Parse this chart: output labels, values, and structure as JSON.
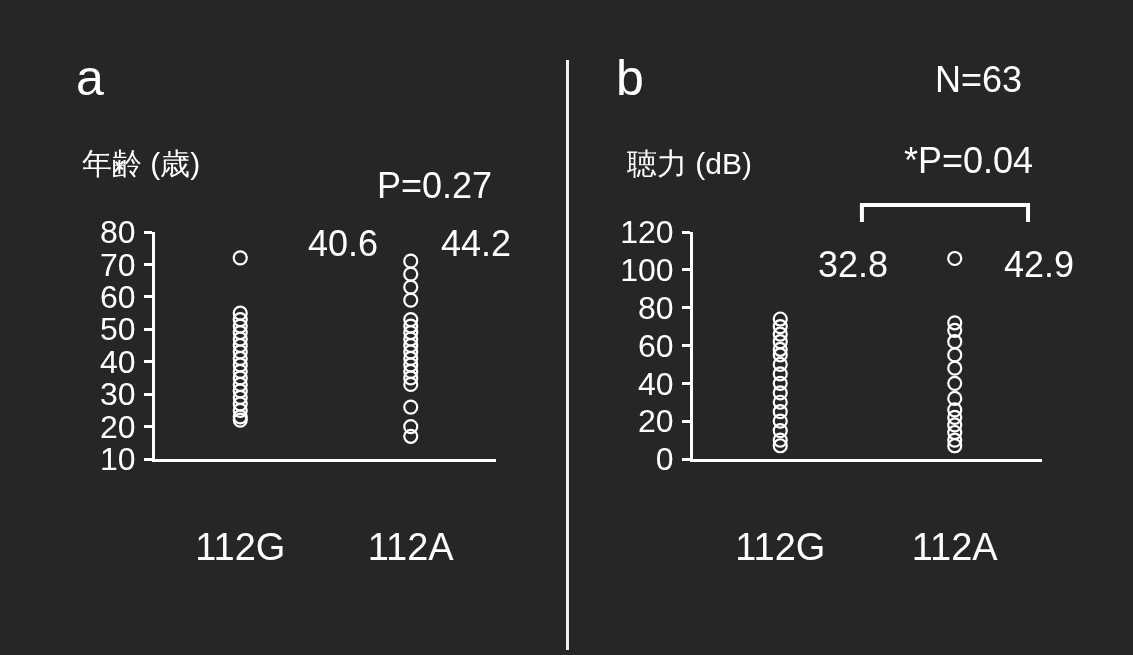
{
  "chart_data": [
    {
      "type": "scatter",
      "title": "a",
      "ylabel": "年齢 (歳)",
      "categories": [
        "112G",
        "112A"
      ],
      "ylim": [
        10,
        80
      ],
      "yticks": [
        10,
        20,
        30,
        40,
        50,
        60,
        70,
        80
      ],
      "marker": "circle",
      "series": [
        {
          "color": "#ffffff",
          "x": [
            "112G",
            "112G",
            "112G",
            "112G",
            "112G",
            "112G",
            "112G",
            "112G",
            "112G",
            "112G",
            "112G",
            "112G",
            "112G",
            "112G",
            "112G",
            "112G",
            "112G",
            "112G",
            "112G"
          ],
          "values": [
            72,
            55,
            53,
            51,
            49,
            47,
            45,
            43,
            41,
            39,
            37,
            35,
            33,
            31,
            29,
            27,
            25,
            23,
            22
          ]
        },
        {
          "color": "#ffffff",
          "x": [
            "112A",
            "112A",
            "112A",
            "112A",
            "112A",
            "112A",
            "112A",
            "112A",
            "112A",
            "112A",
            "112A",
            "112A",
            "112A",
            "112A",
            "112A",
            "112A",
            "112A",
            "112A"
          ],
          "values": [
            71,
            67,
            63,
            59,
            53,
            51,
            49,
            47,
            45,
            43,
            41,
            39,
            37,
            35,
            33,
            26,
            20,
            17
          ]
        }
      ],
      "annotations": [
        "P=0.27",
        "40.6",
        "44.2"
      ]
    },
    {
      "type": "scatter",
      "title": "b",
      "ylabel": "聴力 (dB)",
      "categories": [
        "112G",
        "112A"
      ],
      "ylim": [
        0,
        120
      ],
      "yticks": [
        0,
        20,
        40,
        60,
        80,
        100,
        120
      ],
      "marker": "circle",
      "series": [
        {
          "color": "#ffffff",
          "x": [
            "112G",
            "112G",
            "112G",
            "112G",
            "112G",
            "112G",
            "112G",
            "112G",
            "112G",
            "112G",
            "112G",
            "112G",
            "112G",
            "112G",
            "112G",
            "112G"
          ],
          "values": [
            74,
            70,
            66,
            62,
            58,
            55,
            50,
            45,
            40,
            35,
            30,
            25,
            20,
            15,
            10,
            7
          ]
        },
        {
          "color": "#ffffff",
          "x": [
            "112A",
            "112A",
            "112A",
            "112A",
            "112A",
            "112A",
            "112A",
            "112A",
            "112A",
            "112A",
            "112A",
            "112A",
            "112A",
            "112A"
          ],
          "values": [
            106,
            72,
            68,
            62,
            55,
            48,
            40,
            32,
            26,
            22,
            18,
            14,
            10,
            7
          ]
        }
      ],
      "annotations": [
        "N=63",
        "*P=0.04",
        "32.8",
        "42.9"
      ]
    }
  ]
}
